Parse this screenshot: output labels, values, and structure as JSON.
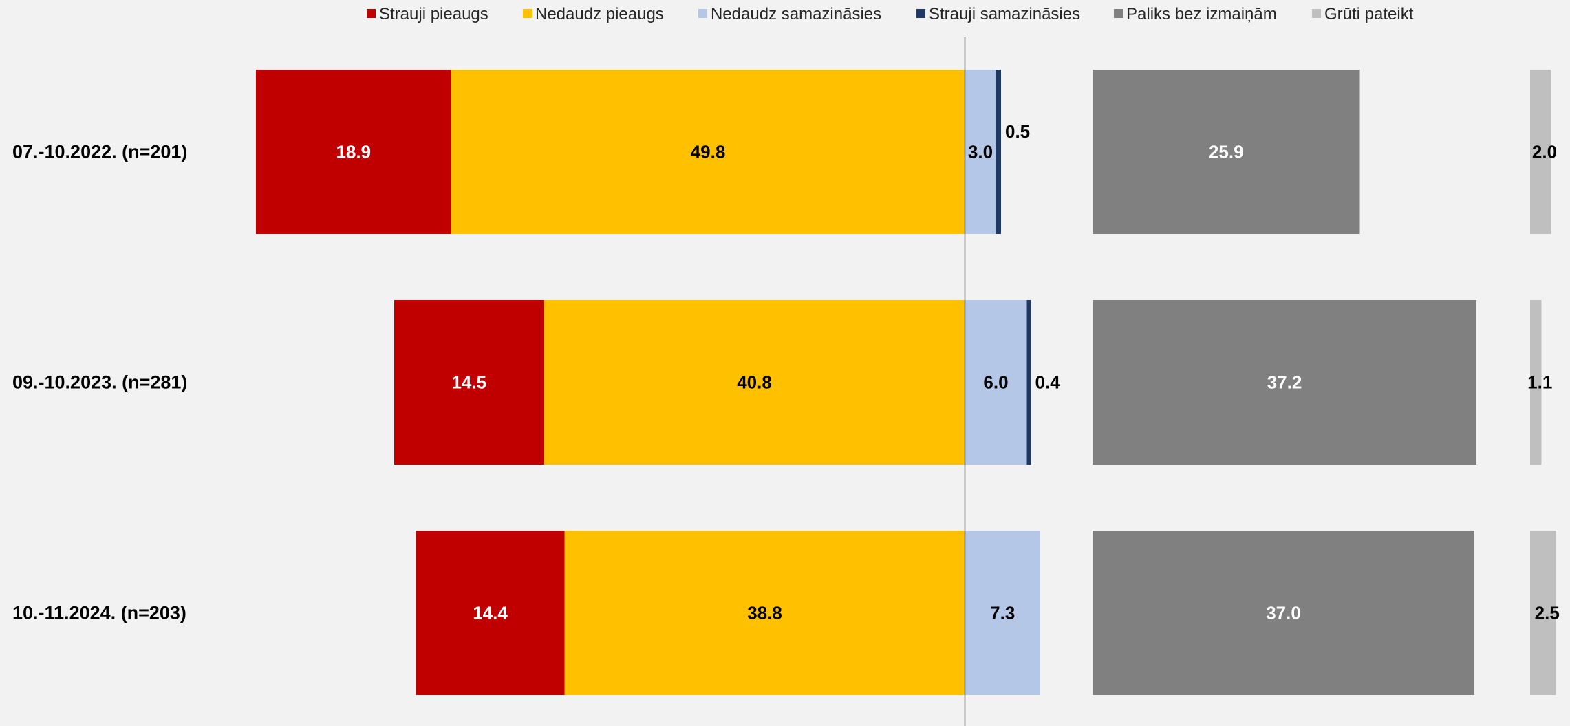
{
  "chart_data": {
    "type": "bar",
    "orientation": "horizontal",
    "stacked": "diverging",
    "grid": false,
    "legend_position": "top",
    "categories": [
      "07.-10.2022. (n=201)",
      "09.-10.2023. (n=281)",
      "10.-11.2024. (n=203)"
    ],
    "series": [
      {
        "name": "Strauji pieaugs",
        "color": "#c00000",
        "label_color": "#ffffff",
        "side": "left",
        "values": [
          18.9,
          14.5,
          14.4
        ]
      },
      {
        "name": "Nedaudz pieaugs",
        "color": "#ffc000",
        "label_color": "#000000",
        "side": "left",
        "values": [
          49.8,
          40.8,
          38.8
        ]
      },
      {
        "name": "Nedaudz samazināsies",
        "color": "#b4c7e7",
        "label_color": "#000000",
        "side": "right",
        "values": [
          3.0,
          6.0,
          7.3
        ]
      },
      {
        "name": "Strauji samazināsies",
        "color": "#203864",
        "label_color": "#000000",
        "side": "right",
        "values": [
          0.5,
          0.4,
          null
        ]
      },
      {
        "name": "Paliks bez izmaiņām",
        "color": "#808080",
        "label_color": "#ffffff",
        "side": "separate",
        "values": [
          25.9,
          37.2,
          37.0
        ]
      },
      {
        "name": "Grūti pateikt",
        "color": "#bfbfbf",
        "label_color": "#000000",
        "side": "separate",
        "values": [
          2.0,
          1.1,
          2.5
        ]
      }
    ],
    "value_labels": [
      [
        "18.9",
        "49.8",
        "3.0",
        "0.5",
        "25.9",
        "2.0"
      ],
      [
        "14.5",
        "40.8",
        "6.0",
        "0.4",
        "37.2",
        "1.1"
      ],
      [
        "14.4",
        "38.8",
        "7.3",
        "",
        "37.0",
        "2.5"
      ]
    ],
    "title": "",
    "xlabel": "",
    "ylabel": ""
  }
}
